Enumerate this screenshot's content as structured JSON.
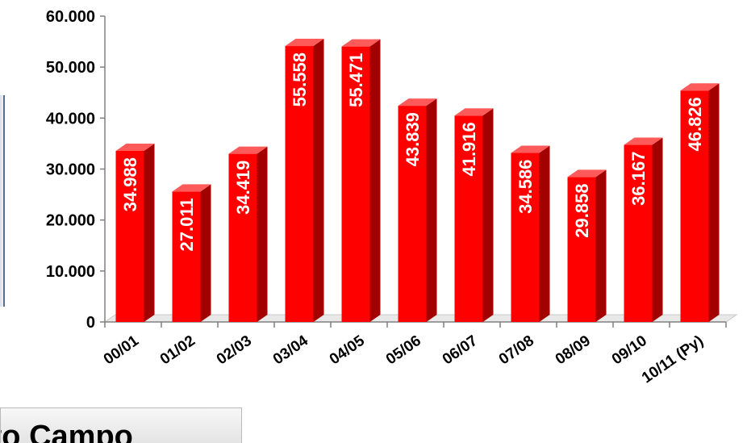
{
  "chart_data": {
    "type": "bar",
    "categories": [
      "00/01",
      "01/02",
      "02/03",
      "03/04",
      "04/05",
      "05/06",
      "06/07",
      "07/08",
      "08/09",
      "09/10",
      "10/11 (Py)"
    ],
    "values": [
      34988,
      27011,
      34419,
      55558,
      55471,
      43839,
      41916,
      34586,
      29858,
      36167,
      46826
    ],
    "value_labels": [
      "34.988",
      "27.011",
      "34.419",
      "55.558",
      "55.471",
      "43.839",
      "41.916",
      "34.586",
      "29.858",
      "36.167",
      "46.826"
    ],
    "y_ticks": [
      0,
      10000,
      20000,
      30000,
      40000,
      50000,
      60000
    ],
    "y_tick_labels": [
      "0",
      "10.000",
      "20.000",
      "30.000",
      "40.000",
      "50.000",
      "60.000"
    ],
    "ylim": [
      0,
      60000
    ],
    "title": "",
    "xlabel": "",
    "ylabel": "",
    "grid": false,
    "legend": "none",
    "colors": {
      "bar_front": "#ff0000",
      "bar_side": "#a30000",
      "bar_top": "#ff5a5a",
      "floor": "#e8e8e8"
    }
  },
  "caption": {
    "text": "tto Campo"
  }
}
